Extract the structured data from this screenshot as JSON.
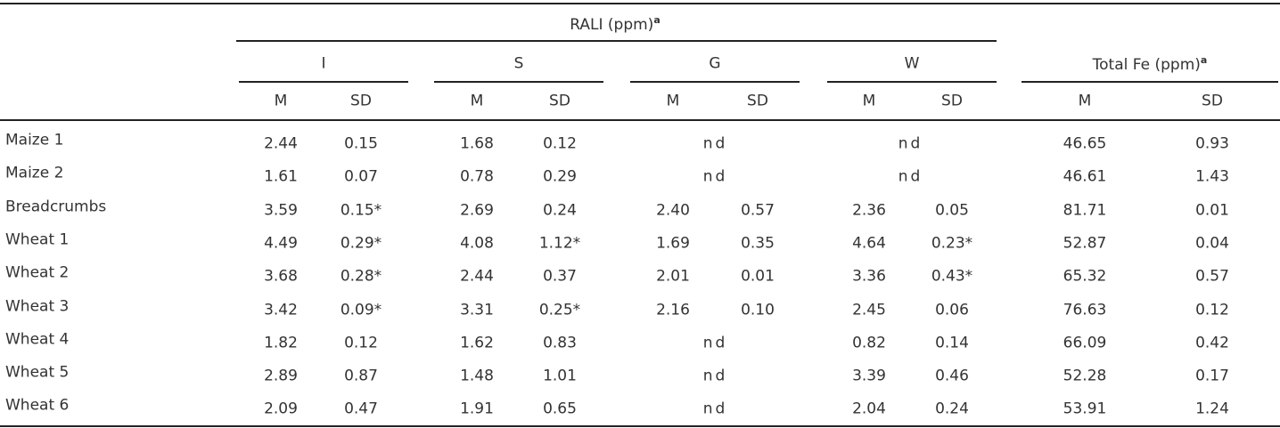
{
  "header": {
    "rali": {
      "text": "RALI (ppm)",
      "sup": "a"
    },
    "groups": [
      "I",
      "S",
      "G",
      "W"
    ],
    "total_fe": {
      "text": "Total Fe (ppm)",
      "sup": "a"
    },
    "columns": [
      "M",
      "SD",
      "M",
      "SD",
      "M",
      "SD",
      "M",
      "SD",
      "M",
      "SD"
    ]
  },
  "table": {
    "rows": [
      [
        "Maize 1",
        [
          "2.44",
          "0.15"
        ],
        [
          "1.68",
          "0.12"
        ],
        [
          "nd"
        ],
        [
          "nd"
        ],
        [
          "46.65",
          "0.93"
        ]
      ],
      [
        "Maize 2",
        [
          "1.61",
          "0.07"
        ],
        [
          "0.78",
          "0.29"
        ],
        [
          "nd"
        ],
        [
          "nd"
        ],
        [
          "46.61",
          "1.43"
        ]
      ],
      [
        "Breadcrumbs",
        [
          "3.59",
          "0.15*"
        ],
        [
          "2.69",
          "0.24"
        ],
        [
          "2.40",
          "0.57"
        ],
        [
          "2.36",
          "0.05"
        ],
        [
          "81.71",
          "0.01"
        ]
      ],
      [
        "Wheat 1",
        [
          "4.49",
          "0.29*"
        ],
        [
          "4.08",
          "1.12*"
        ],
        [
          "1.69",
          "0.35"
        ],
        [
          "4.64",
          "0.23*"
        ],
        [
          "52.87",
          "0.04"
        ]
      ],
      [
        "Wheat 2",
        [
          "3.68",
          "0.28*"
        ],
        [
          "2.44",
          "0.37"
        ],
        [
          "2.01",
          "0.01"
        ],
        [
          "3.36",
          "0.43*"
        ],
        [
          "65.32",
          "0.57"
        ]
      ],
      [
        "Wheat 3",
        [
          "3.42",
          "0.09*"
        ],
        [
          "3.31",
          "0.25*"
        ],
        [
          "2.16",
          "0.10"
        ],
        [
          "2.45",
          "0.06"
        ],
        [
          "76.63",
          "0.12"
        ]
      ],
      [
        "Wheat 4",
        [
          "1.82",
          "0.12"
        ],
        [
          "1.62",
          "0.83"
        ],
        [
          "nd"
        ],
        [
          "0.82",
          "0.14"
        ],
        [
          "66.09",
          "0.42"
        ]
      ],
      [
        "Wheat 5",
        [
          "2.89",
          "0.87"
        ],
        [
          "1.48",
          "1.01"
        ],
        [
          "nd"
        ],
        [
          "3.39",
          "0.46"
        ],
        [
          "52.28",
          "0.17"
        ]
      ],
      [
        "Wheat 6",
        [
          "2.09",
          "0.47"
        ],
        [
          "1.91",
          "0.65"
        ],
        [
          "nd"
        ],
        [
          "2.04",
          "0.24"
        ],
        [
          "53.91",
          "1.24"
        ]
      ]
    ]
  }
}
